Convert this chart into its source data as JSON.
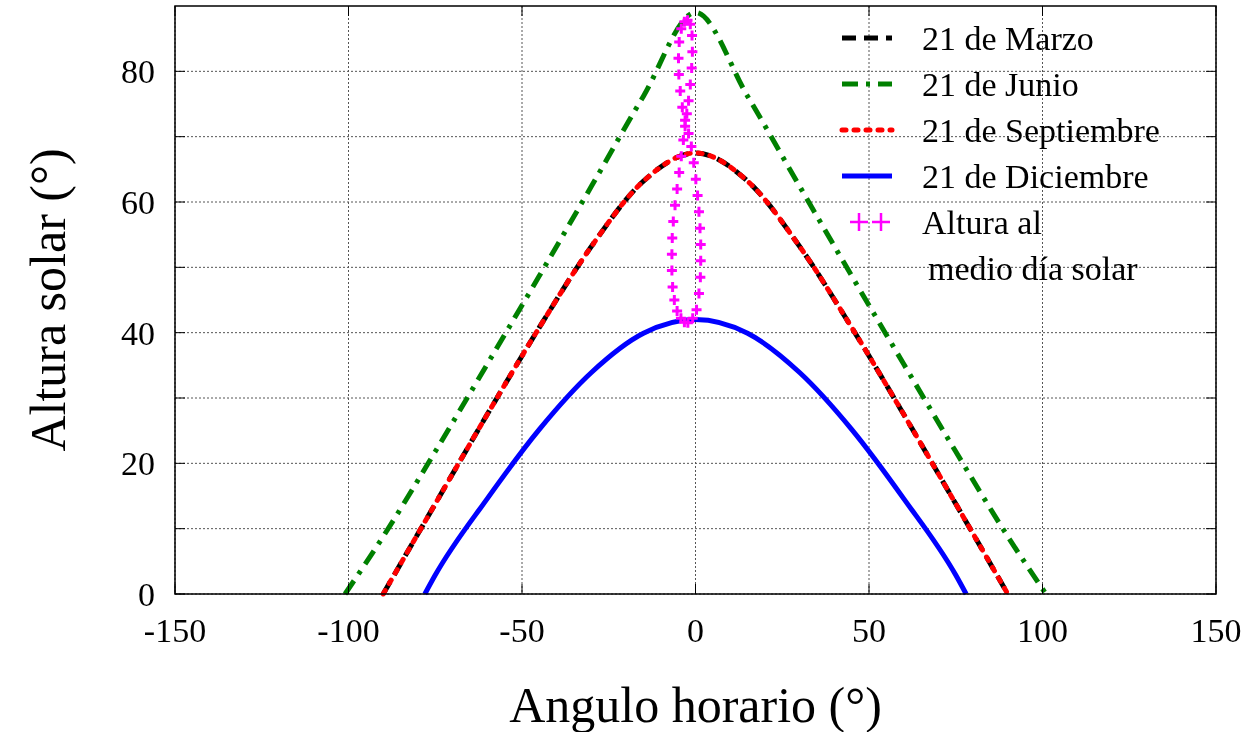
{
  "chart_data": {
    "type": "line",
    "xlabel": "Angulo horario (°)",
    "ylabel": "Altura solar (°)",
    "xlim": [
      -150,
      150
    ],
    "xticks": [
      -150,
      -100,
      -50,
      0,
      50,
      100,
      150
    ],
    "ylim": [
      0,
      90
    ],
    "yticks": [
      0,
      {
        "value": 10,
        "label": null
      },
      20,
      {
        "value": 30,
        "label": null
      },
      40,
      {
        "value": 50,
        "label": null
      },
      60,
      {
        "value": 70,
        "label": null
      },
      80
    ],
    "grid": true,
    "legend": "top right",
    "series": [
      {
        "name": "21 de Marzo",
        "color": "#000000",
        "line_style": "dashed",
        "x": [
          -90,
          -75,
          -60,
          -45,
          -30,
          -15,
          0,
          15,
          30,
          45,
          60,
          75,
          90
        ],
        "values": [
          0,
          13.8,
          27.5,
          40.8,
          53.2,
          63.2,
          67.5,
          63.2,
          53.2,
          40.8,
          27.5,
          13.8,
          0
        ]
      },
      {
        "name": "21 de Junio",
        "color": "#008000",
        "line_style": "dashdot",
        "x": [
          -101,
          -90,
          -75,
          -60,
          -45,
          -30,
          -15,
          0,
          15,
          30,
          45,
          60,
          75,
          90,
          101
        ],
        "values": [
          0,
          8.8,
          21.8,
          35.2,
          48.7,
          62.4,
          76.2,
          89,
          76.2,
          62.4,
          48.7,
          35.2,
          21.8,
          8.8,
          0
        ]
      },
      {
        "name": "21 de Septiembre",
        "color": "#ff0000",
        "line_style": "dotted",
        "x": [
          -90,
          -75,
          -60,
          -45,
          -30,
          -15,
          0,
          15,
          30,
          45,
          60,
          75,
          90
        ],
        "values": [
          0,
          13.8,
          27.5,
          40.8,
          53.2,
          63.2,
          67.5,
          63.2,
          53.2,
          40.8,
          27.5,
          13.8,
          0
        ]
      },
      {
        "name": "21 de Diciembre",
        "color": "#0000ff",
        "line_style": "solid",
        "x": [
          -78,
          -75,
          -60,
          -45,
          -30,
          -15,
          0,
          15,
          30,
          45,
          60,
          75,
          78
        ],
        "values": [
          0,
          2.9,
          14.6,
          25.2,
          33.9,
          39.9,
          42,
          39.9,
          33.9,
          25.2,
          14.6,
          2.9,
          0
        ]
      },
      {
        "name": "Altura al\nmedio día solar",
        "type": "scatter",
        "color": "#ff00ff",
        "marker": "cross",
        "x": [
          -2.2,
          -0.8,
          0.3,
          1.0,
          1.4,
          1.5,
          1.5,
          1.3,
          1.0,
          0.6,
          0.1,
          -0.5,
          -1.2,
          -2,
          -3,
          -3.8,
          -4.4,
          -4.8,
          -4.9,
          -4.7,
          -4.1,
          -3.2,
          -2.3,
          -1.5,
          -1.0,
          -0.9,
          -1.1,
          -1.5,
          -2,
          -2.5,
          -3,
          -3.5,
          -4.1,
          -4.7,
          -5.3,
          -5.9,
          -6.4,
          -6.7,
          -6.8,
          -6.8,
          -6.6,
          -6.1,
          -5.3,
          -4.2,
          -3.2
        ],
        "values": [
          41.5,
          42.2,
          43.5,
          46,
          48.5,
          51,
          53.5,
          56,
          58.5,
          61,
          63.5,
          66,
          68.5,
          70.5,
          72.5,
          74.5,
          77,
          79.5,
          82,
          84.5,
          86.5,
          87.6,
          87.8,
          87.2,
          85.5,
          83,
          80.5,
          78,
          75.5,
          73.5,
          71.6,
          69.5,
          67,
          64.5,
          62,
          59.5,
          57,
          54.5,
          52,
          49.5,
          47,
          45,
          43.3,
          42.2,
          41.6
        ]
      }
    ]
  }
}
